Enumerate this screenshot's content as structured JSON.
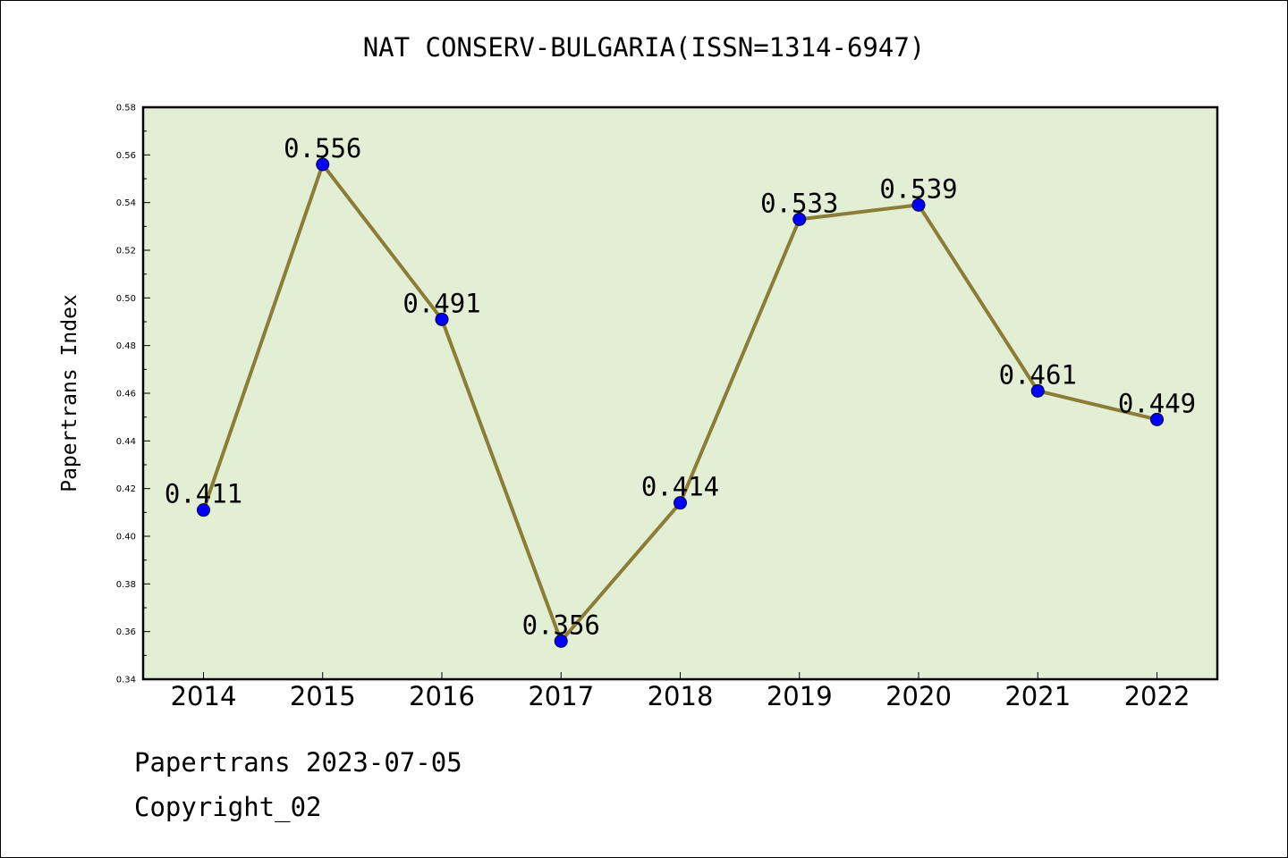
{
  "chart_data": {
    "type": "line",
    "title": "NAT CONSERV-BULGARIA(ISSN=1314-6947)",
    "xlabel": "",
    "ylabel": "Papertrans Index",
    "categories": [
      "2014",
      "2015",
      "2016",
      "2017",
      "2018",
      "2019",
      "2020",
      "2021",
      "2022"
    ],
    "values": [
      0.411,
      0.556,
      0.491,
      0.356,
      0.414,
      0.533,
      0.539,
      0.461,
      0.449
    ],
    "data_labels": [
      "0.411",
      "0.556",
      "0.491",
      "0.356",
      "0.414",
      "0.533",
      "0.539",
      "0.461",
      "0.449"
    ],
    "ylim": [
      0.34,
      0.58
    ],
    "yticks": [
      "0.34",
      "0.36",
      "0.38",
      "0.40",
      "0.42",
      "0.44",
      "0.46",
      "0.48",
      "0.50",
      "0.52",
      "0.54",
      "0.56",
      "0.58"
    ],
    "grid": false,
    "colors": {
      "plot_background": "#e2efd5",
      "line": "#8b7d36",
      "marker": "#0000ff"
    }
  },
  "footer": {
    "date_line": "Papertrans 2023-07-05",
    "copyright": "Copyright_02"
  }
}
